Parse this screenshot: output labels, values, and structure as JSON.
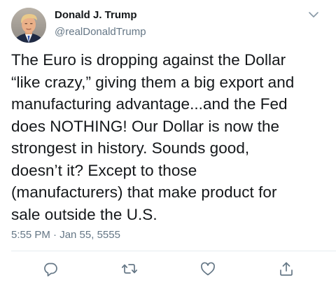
{
  "tweet": {
    "author_name": "Donald J. Trump",
    "author_handle": "@realDonaldTrump",
    "text": "The Euro is dropping against the Dollar\n“like crazy,” giving them a big export and\nmanufacturing advantage...and the Fed\ndoes NOTHING! Our Dollar is now the\nstrongest in history. Sounds good,\ndoesn’t it? Except to those\n(manufacturers) that make product for\nsale outside the U.S.",
    "timestamp": "5:55 PM · Jan 55, 5555"
  },
  "icons": {
    "avatar": "profile-photo",
    "menu": "chevron-down-icon",
    "reply": "reply-icon",
    "retweet": "retweet-icon",
    "like": "heart-icon",
    "share": "share-icon"
  },
  "colors": {
    "primary_text": "#14171a",
    "secondary_text": "#657786",
    "divider": "#e6ecf0",
    "icon": "#657786"
  }
}
